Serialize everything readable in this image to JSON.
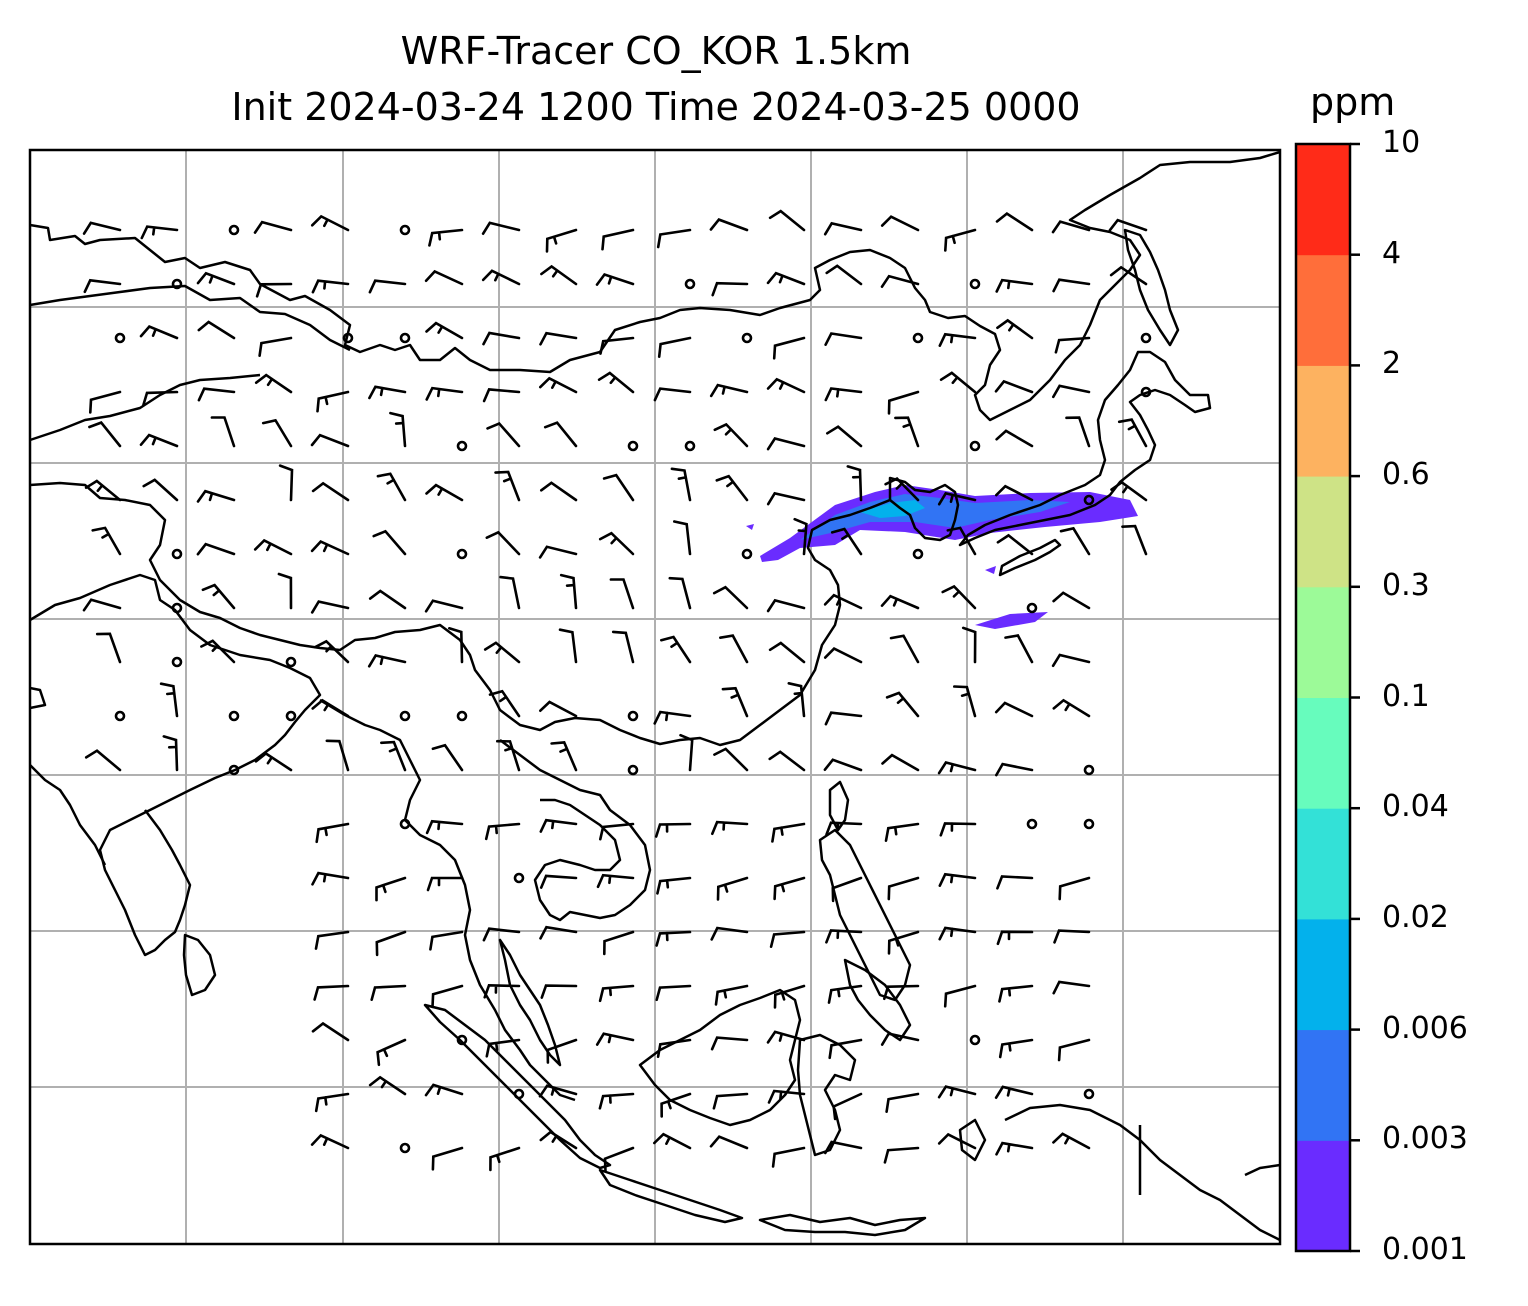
{
  "title": {
    "line1": "WRF-Tracer CO_KOR 1.5km",
    "line2": "Init 2024-03-24 1200 Time 2024-03-25 0000"
  },
  "colorbar": {
    "unit": "ppm",
    "tick_labels": [
      "0.001",
      "0.003",
      "0.006",
      "0.02",
      "0.04",
      "0.1",
      "0.3",
      "0.6",
      "2",
      "4",
      "10"
    ],
    "colors": [
      "#6a2cff",
      "#3174f4",
      "#03b1ec",
      "#33e1d7",
      "#67fcbd",
      "#9cfa98",
      "#cee386",
      "#fdb260",
      "#ff6e3a",
      "#ff2b18"
    ]
  },
  "map": {
    "projection_grid": "on",
    "tracer_plume": {
      "max_level": "0.006",
      "regions": [
        "Korean Peninsula",
        "Yellow Sea",
        "northern Japan",
        "East China Sea"
      ]
    }
  }
}
